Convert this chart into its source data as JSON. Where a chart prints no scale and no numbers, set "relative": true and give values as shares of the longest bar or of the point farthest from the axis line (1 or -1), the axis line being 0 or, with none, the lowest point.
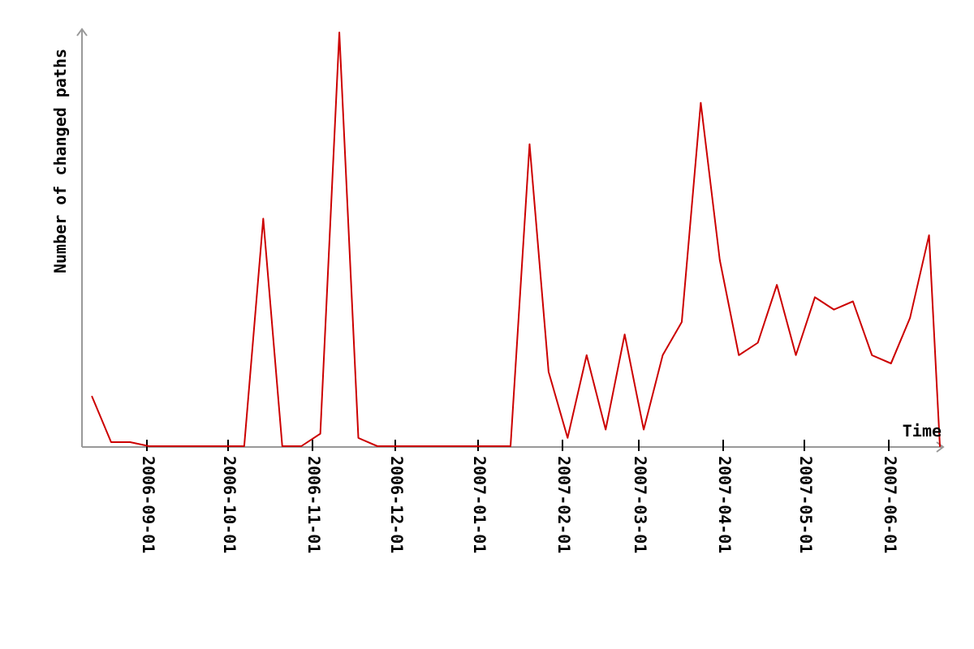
{
  "chart_data": {
    "type": "line",
    "xlabel": "Time",
    "ylabel": "Number of changed paths",
    "relative": true,
    "x": [
      "2006-08-12",
      "2006-08-19",
      "2006-08-26",
      "2006-09-02",
      "2006-09-09",
      "2006-09-16",
      "2006-09-23",
      "2006-09-30",
      "2006-10-07",
      "2006-10-14",
      "2006-10-21",
      "2006-10-28",
      "2006-11-04",
      "2006-11-11",
      "2006-11-18",
      "2006-11-25",
      "2006-12-02",
      "2006-12-09",
      "2006-12-16",
      "2006-12-23",
      "2006-12-30",
      "2007-01-06",
      "2007-01-13",
      "2007-01-20",
      "2007-01-27",
      "2007-02-03",
      "2007-02-10",
      "2007-02-17",
      "2007-02-24",
      "2007-03-03",
      "2007-03-10",
      "2007-03-17",
      "2007-03-24",
      "2007-03-31",
      "2007-04-07",
      "2007-04-14",
      "2007-04-21",
      "2007-04-28",
      "2007-05-05",
      "2007-05-12",
      "2007-05-19",
      "2007-05-26",
      "2007-06-02",
      "2007-06-09",
      "2007-06-16",
      "2007-06-20"
    ],
    "series": [
      {
        "color": "#cc0000",
        "values": [
          0.12,
          0.01,
          0.01,
          0,
          0,
          0,
          0,
          0,
          0,
          0.55,
          0,
          0,
          0.03,
          1,
          0.02,
          0,
          0,
          0,
          0,
          0,
          0,
          0,
          0,
          0.73,
          0.18,
          0.02,
          0.22,
          0.04,
          0.27,
          0.04,
          0.22,
          0.3,
          0.83,
          0.45,
          0.22,
          0.25,
          0.39,
          0.22,
          0.36,
          0.33,
          0.35,
          0.22,
          0.2,
          0.31,
          0.51,
          0
        ]
      }
    ],
    "xlim": [
      "2006-08-08",
      "2007-06-20"
    ],
    "xticks": [
      "2006-09-01",
      "2006-10-01",
      "2006-11-01",
      "2006-12-01",
      "2007-01-01",
      "2007-02-01",
      "2007-03-01",
      "2007-04-01",
      "2007-05-01",
      "2007-06-01"
    ],
    "grid": false,
    "legend": false,
    "marker": "none",
    "line_style": "solid"
  }
}
